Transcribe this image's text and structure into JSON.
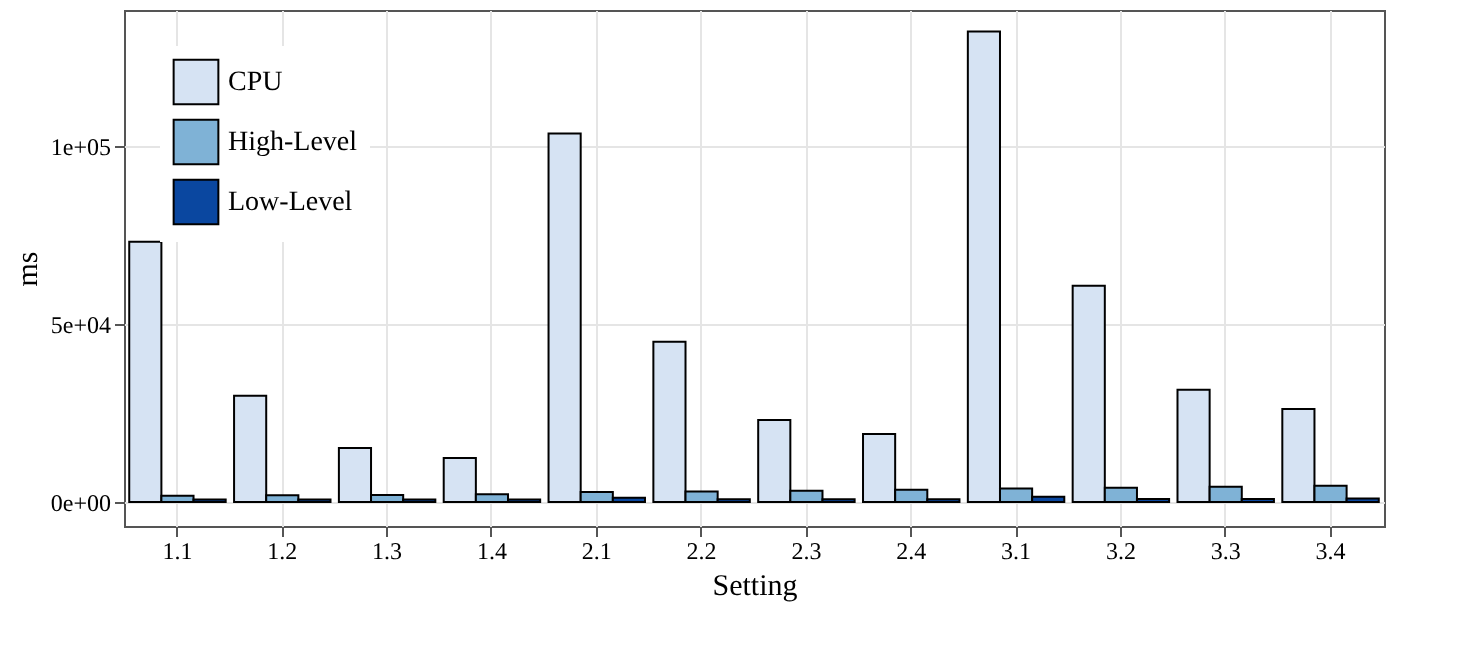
{
  "chart_data": {
    "type": "bar",
    "xlabel": "Setting",
    "ylabel": "ms",
    "categories": [
      "1.1",
      "1.2",
      "1.3",
      "1.4",
      "2.1",
      "2.2",
      "2.3",
      "2.4",
      "3.1",
      "3.2",
      "3.3",
      "3.4"
    ],
    "series": [
      {
        "name": "CPU",
        "color": "#d6e3f3",
        "values": [
          73000,
          29800,
          15200,
          12400,
          103400,
          45000,
          23000,
          19100,
          132000,
          60700,
          31500,
          26100
        ]
      },
      {
        "name": "High-Level",
        "color": "#7fb2d6",
        "values": [
          1800,
          1900,
          2000,
          2200,
          2800,
          3000,
          3200,
          3500,
          3800,
          4000,
          4300,
          4600
        ]
      },
      {
        "name": "Low-Level",
        "color": "#0a47a0",
        "values": [
          700,
          700,
          700,
          700,
          1200,
          800,
          800,
          800,
          1500,
          900,
          900,
          1000
        ]
      }
    ],
    "ylim": [
      -6700,
      138000
    ],
    "yticks": [
      {
        "value": 0,
        "label": "0e+00"
      },
      {
        "value": 50000,
        "label": "5e+04"
      },
      {
        "value": 100000,
        "label": "1e+05"
      }
    ],
    "grid": true,
    "legend": "top left"
  }
}
